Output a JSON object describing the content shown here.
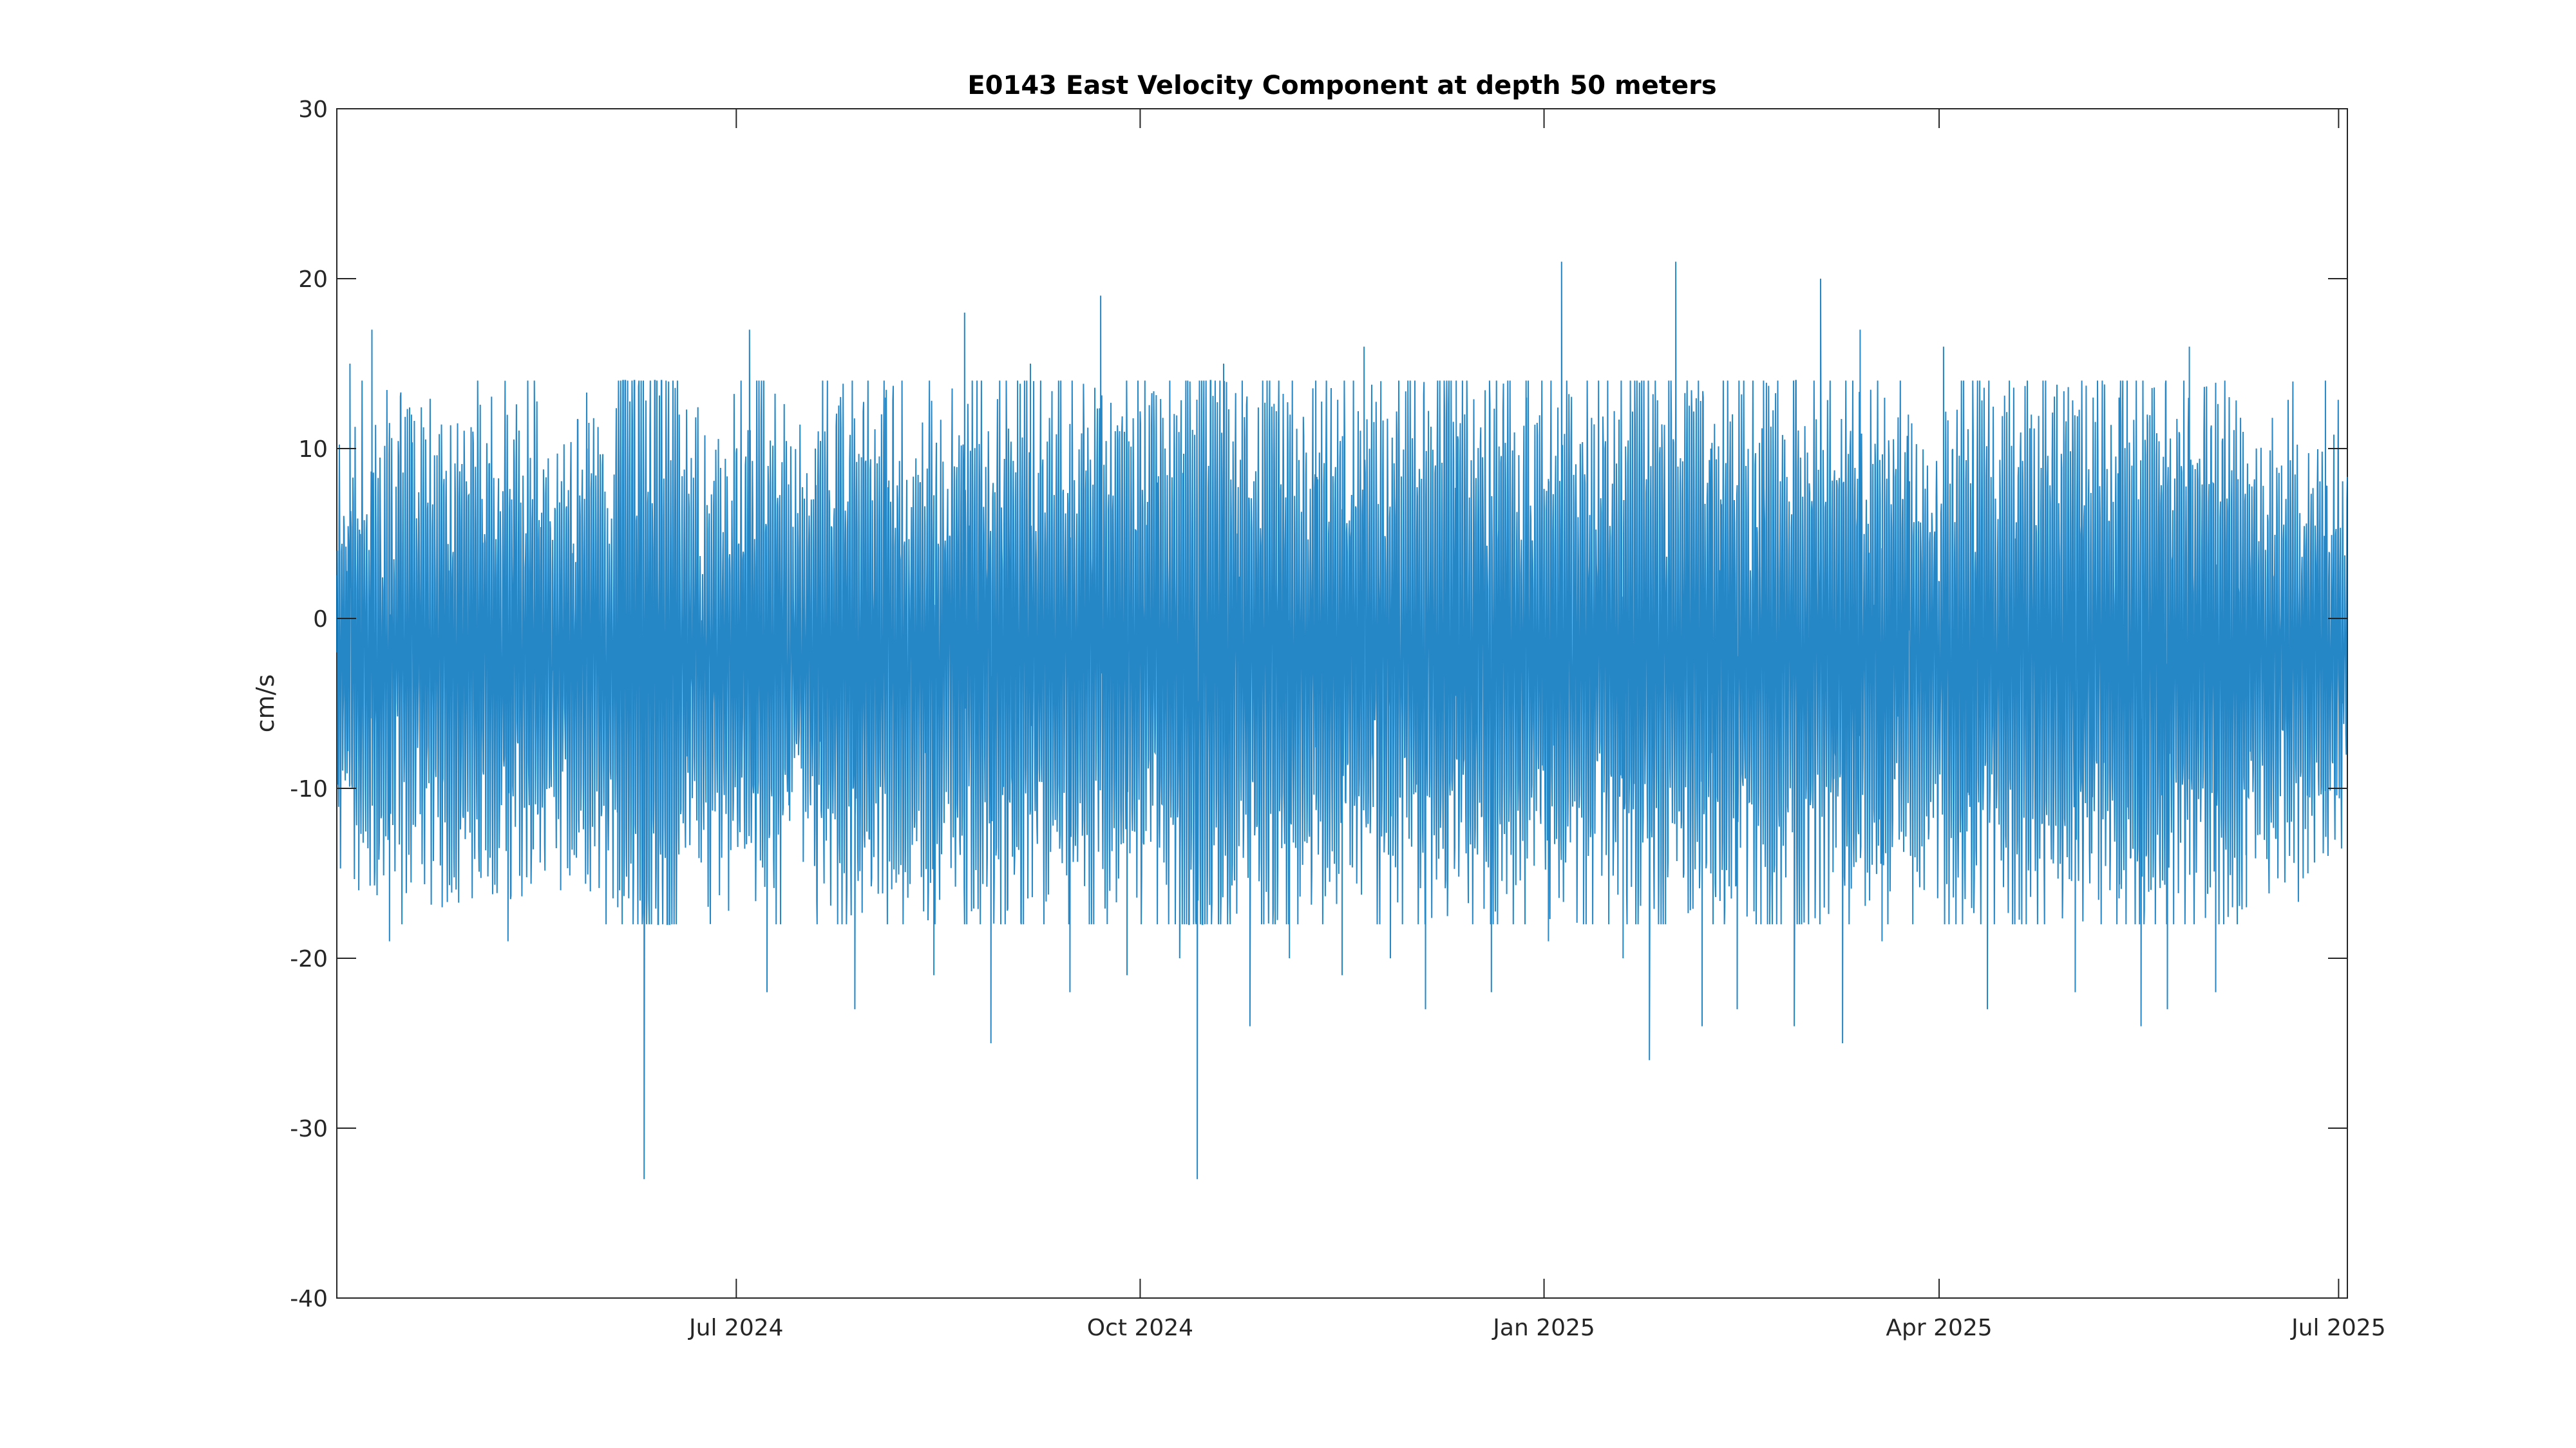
{
  "chart_data": {
    "type": "line",
    "title": "E0143 East Velocity Component at depth 50 meters",
    "xlabel": "",
    "ylabel": "cm/s",
    "xlim": [
      "2024-04-01",
      "2025-07-03"
    ],
    "ylim": [
      -40,
      30
    ],
    "x_ticks": [
      {
        "value": "2024-07-01",
        "label": "Jul 2024"
      },
      {
        "value": "2024-10-01",
        "label": "Oct 2024"
      },
      {
        "value": "2025-01-01",
        "label": "Jan 2025"
      },
      {
        "value": "2025-04-01",
        "label": "Apr 2025"
      },
      {
        "value": "2025-07-01",
        "label": "Jul 2025"
      }
    ],
    "y_ticks": [
      {
        "value": 30,
        "label": "30"
      },
      {
        "value": 20,
        "label": "20"
      },
      {
        "value": 10,
        "label": "10"
      },
      {
        "value": 0,
        "label": "0"
      },
      {
        "value": -10,
        "label": "-10"
      },
      {
        "value": -20,
        "label": "-20"
      },
      {
        "value": -30,
        "label": "-30"
      },
      {
        "value": -40,
        "label": "-40"
      }
    ],
    "grid": false,
    "legend": "none",
    "line_color": "#0072BD",
    "series": [
      {
        "x": [
          "2024-04-01",
          "2024-04-04",
          "2024-04-06",
          "2024-04-09",
          "2024-04-13",
          "2024-04-18",
          "2024-04-25",
          "2024-05-02",
          "2024-05-10",
          "2024-05-16",
          "2024-05-22",
          "2024-05-28",
          "2024-06-04",
          "2024-06-10",
          "2024-06-18",
          "2024-06-25",
          "2024-07-04",
          "2024-07-08",
          "2024-07-13",
          "2024-07-19",
          "2024-07-28",
          "2024-08-04",
          "2024-08-15",
          "2024-08-22",
          "2024-08-28",
          "2024-09-06",
          "2024-09-15",
          "2024-09-22",
          "2024-09-28",
          "2024-10-05",
          "2024-10-10",
          "2024-10-14",
          "2024-10-20",
          "2024-10-26",
          "2024-11-04",
          "2024-11-10",
          "2024-11-16",
          "2024-11-21",
          "2024-11-27",
          "2024-12-05",
          "2024-12-12",
          "2024-12-20",
          "2024-12-28",
          "2025-01-02",
          "2025-01-05",
          "2025-01-10",
          "2025-01-19",
          "2025-01-25",
          "2025-01-31",
          "2025-02-06",
          "2025-02-08",
          "2025-02-14",
          "2025-02-20",
          "2025-02-27",
          "2025-03-05",
          "2025-03-10",
          "2025-03-14",
          "2025-03-19",
          "2025-03-25",
          "2025-04-02",
          "2025-04-12",
          "2025-04-22",
          "2025-05-02",
          "2025-05-12",
          "2025-05-17",
          "2025-05-23",
          "2025-05-28",
          "2025-06-03",
          "2025-06-10",
          "2025-06-18",
          "2025-06-24",
          "2025-06-28",
          "2025-07-02"
        ],
        "values": [
          -2,
          15,
          -16,
          17,
          -19,
          12,
          -17,
          11,
          -19,
          14,
          -16,
          10,
          -17,
          -33,
          12,
          -13,
          17,
          -22,
          -11,
          10,
          -23,
          13,
          -21,
          18,
          -25,
          15,
          -22,
          19,
          -21,
          8,
          -20,
          -33,
          15,
          -24,
          -20,
          14,
          -21,
          16,
          -20,
          -23,
          14,
          -22,
          13,
          -19,
          21,
          -18,
          -20,
          -26,
          21,
          -24,
          10,
          -23,
          14,
          -24,
          20,
          -25,
          17,
          -19,
          12,
          16,
          -23,
          12,
          -22,
          13,
          -24,
          -23,
          16,
          -22,
          -17,
          9,
          -15,
          14,
          -5
        ]
      }
    ]
  }
}
